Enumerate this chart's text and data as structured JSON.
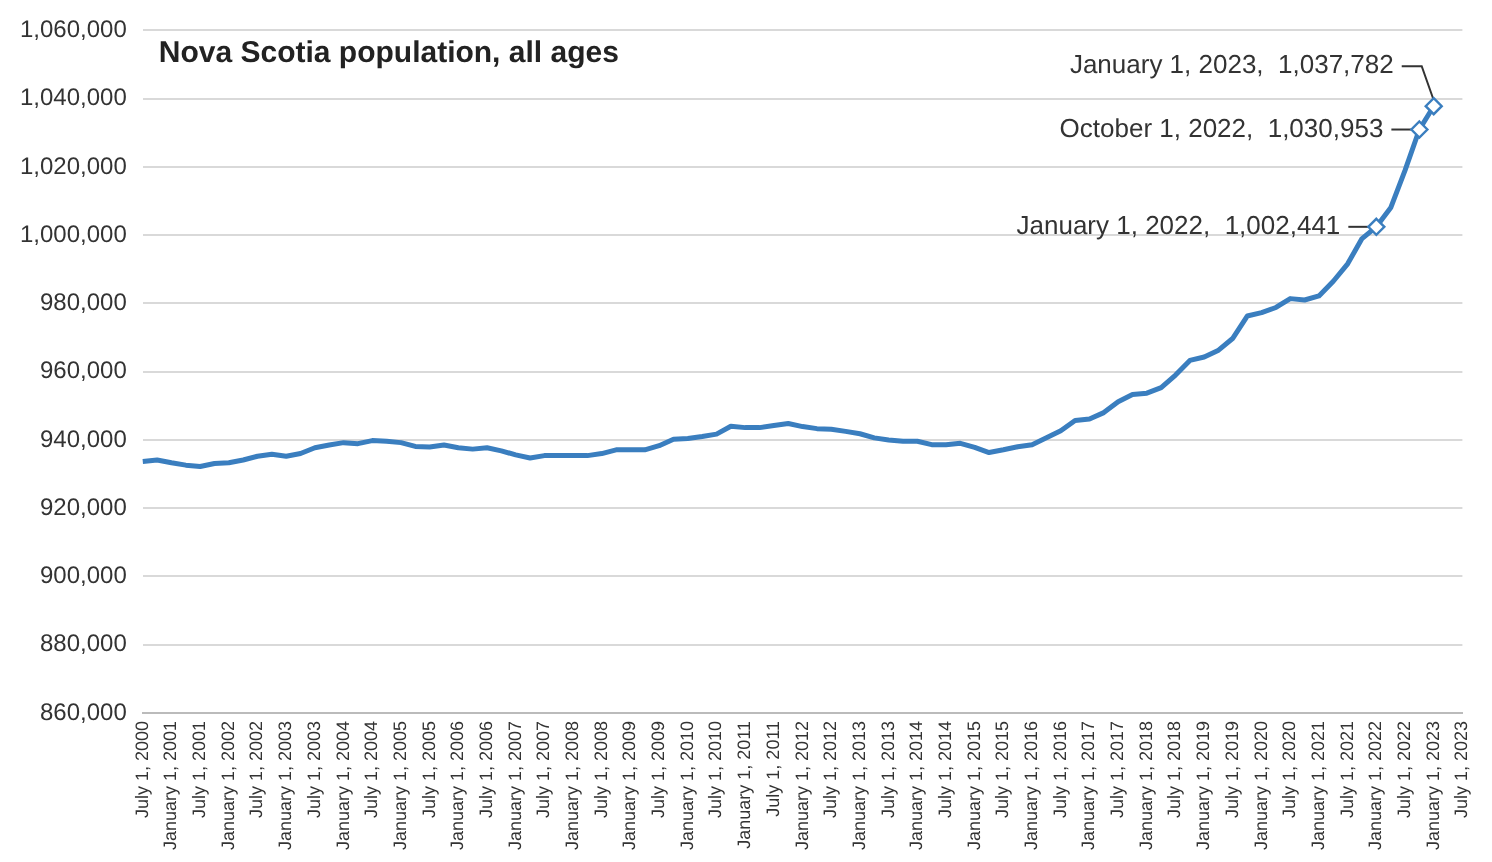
{
  "chart_data": {
    "type": "line",
    "title": "Nova Scotia population, all ages",
    "categories": [
      "July 1, 2000",
      null,
      "January 1, 2001",
      null,
      "July 1, 2001",
      null,
      "January 1, 2002",
      null,
      "July 1, 2002",
      null,
      "January 1, 2003",
      null,
      "July 1, 2003",
      null,
      "January 1, 2004",
      null,
      "July 1, 2004",
      null,
      "January 1, 2005",
      null,
      "July 1, 2005",
      null,
      "January 1, 2006",
      null,
      "July 1, 2006",
      null,
      "January 1, 2007",
      null,
      "July 1, 2007",
      null,
      "January 1, 2008",
      null,
      "July 1, 2008",
      null,
      "January 1, 2009",
      null,
      "July 1, 2009",
      null,
      "January 1, 2010",
      null,
      "July 1, 2010",
      null,
      "January 1, 2011",
      null,
      "July 1, 2011",
      null,
      "January 1, 2012",
      null,
      "July 1, 2012",
      null,
      "January 1, 2013",
      null,
      "July 1, 2013",
      null,
      "January 1, 2014",
      null,
      "July 1, 2014",
      null,
      "January 1, 2015",
      null,
      "July 1, 2015",
      null,
      "January 1, 2016",
      null,
      "July 1, 2016",
      null,
      "January 1, 2017",
      null,
      "July 1, 2017",
      null,
      "January 1, 2018",
      null,
      "July 1, 2018",
      null,
      "January 1, 2019",
      null,
      "July 1, 2019",
      null,
      "January 1, 2020",
      null,
      "July 1, 2020",
      null,
      "January 1, 2021",
      null,
      "July 1, 2021",
      null,
      "January 1, 2022",
      null,
      "July 1, 2022",
      null,
      "January 1, 2023",
      null,
      "July 1, 2023"
    ],
    "series": [
      {
        "color": "#3a7ebf",
        "values": [
          933700,
          934100,
          933300,
          932600,
          932200,
          933100,
          933300,
          934100,
          935200,
          935800,
          935200,
          936000,
          937700,
          938500,
          939200,
          938900,
          939800,
          939600,
          939200,
          938100,
          937900,
          938500,
          937700,
          937300,
          937700,
          936800,
          935600,
          934700,
          935400,
          935400,
          935400,
          935400,
          936000,
          937100,
          937100,
          937100,
          938300,
          940200,
          940400,
          941000,
          941700,
          944000,
          943600,
          943600,
          944200,
          944800,
          943900,
          943300,
          943100,
          942500,
          941800,
          940600,
          940000,
          939600,
          939600,
          938600,
          938600,
          939000,
          937800,
          936300,
          937100,
          938000,
          938600,
          940600,
          942700,
          945700,
          946100,
          948000,
          951200,
          953300,
          953700,
          955300,
          959000,
          963300,
          964300,
          966300,
          969800,
          976300,
          977300,
          978800,
          981400,
          981000,
          982200,
          986500,
          991600,
          999000,
          1002441,
          1008000,
          1019000,
          1030953,
          1037782,
          null,
          null
        ]
      }
    ],
    "ylim": [
      860000,
      1060000
    ],
    "yticks": [
      {
        "value": 860000,
        "label": "860,000"
      },
      {
        "value": 880000,
        "label": "880,000"
      },
      {
        "value": 900000,
        "label": "900,000"
      },
      {
        "value": 920000,
        "label": "920,000"
      },
      {
        "value": 940000,
        "label": "940,000"
      },
      {
        "value": 960000,
        "label": "960,000"
      },
      {
        "value": 980000,
        "label": "980,000"
      },
      {
        "value": 1000000,
        "label": "1,000,000"
      },
      {
        "value": 1020000,
        "label": "1,020,000"
      },
      {
        "value": 1040000,
        "label": "1,040,000"
      },
      {
        "value": 1060000,
        "label": "1,060,000"
      }
    ],
    "grid": "y",
    "annotations": [
      {
        "text": "January 1, 2023,  1,037,782",
        "x": "January 1, 2023",
        "y": 1037782
      },
      "October 1, 2022,  1,030,953",
      {
        "text": "January 1, 2022,  1,002,441",
        "x": "January 1, 2022",
        "y": 1002441
      }
    ]
  }
}
